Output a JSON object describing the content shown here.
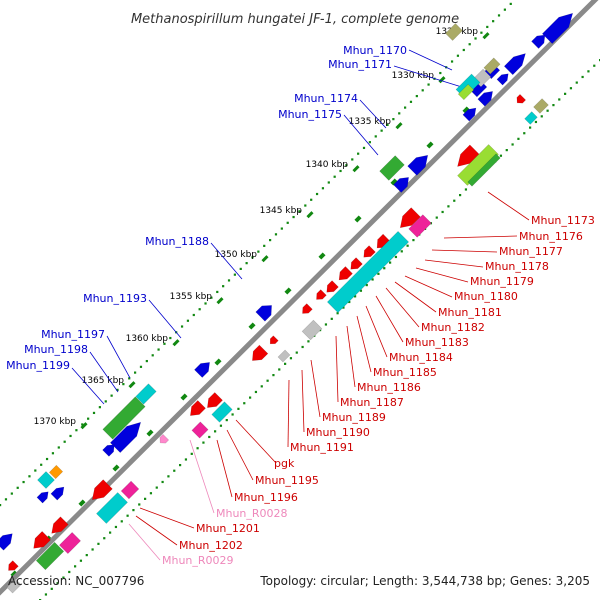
{
  "title": "Methanospirillum hungatei JF-1, complete genome",
  "footer": {
    "accession": "Accession: NC_007796",
    "summary": "Topology: circular; Length: 3,544,738 bp; Genes: 3,205"
  },
  "scale": {
    "ticks": [
      "1325 kbp",
      "1330 kbp",
      "1335 kbp",
      "1340 kbp",
      "1345 kbp",
      "1350 kbp",
      "1355 kbp",
      "1360 kbp",
      "1365 kbp",
      "1370 kbp"
    ]
  },
  "colors": {
    "backbone": "#8a8a8a",
    "plus_label": "#0000cc",
    "minus_label": "#cc0000",
    "rna_label": "#ee88bb",
    "dot_plus": "#118811",
    "blue": "#0000dd",
    "red": "#ee0000",
    "cyan": "#00cccc",
    "green": "#33aa33",
    "lime": "#99dd33",
    "magenta": "#ee2299",
    "pink": "#ff88cc",
    "grey": "#c0c0c0",
    "olive": "#aaaa66",
    "orange": "#ff9900"
  },
  "labels_plus": [
    "Mhun_1170",
    "Mhun_1171",
    "Mhun_1174",
    "Mhun_1175",
    "Mhun_1188",
    "Mhun_1193",
    "Mhun_1197",
    "Mhun_1198",
    "Mhun_1199"
  ],
  "labels_minus": [
    "Mhun_1173",
    "Mhun_1176",
    "Mhun_1177",
    "Mhun_1178",
    "Mhun_1179",
    "Mhun_1180",
    "Mhun_1181",
    "Mhun_1182",
    "Mhun_1183",
    "Mhun_1184",
    "Mhun_1185",
    "Mhun_1186",
    "Mhun_1187",
    "Mhun_1189",
    "Mhun_1190",
    "Mhun_1191",
    "pgk",
    "Mhun_1195",
    "Mhun_1196",
    "Mhun_R0028",
    "Mhun_1201",
    "Mhun_1202",
    "Mhun_R0029"
  ]
}
